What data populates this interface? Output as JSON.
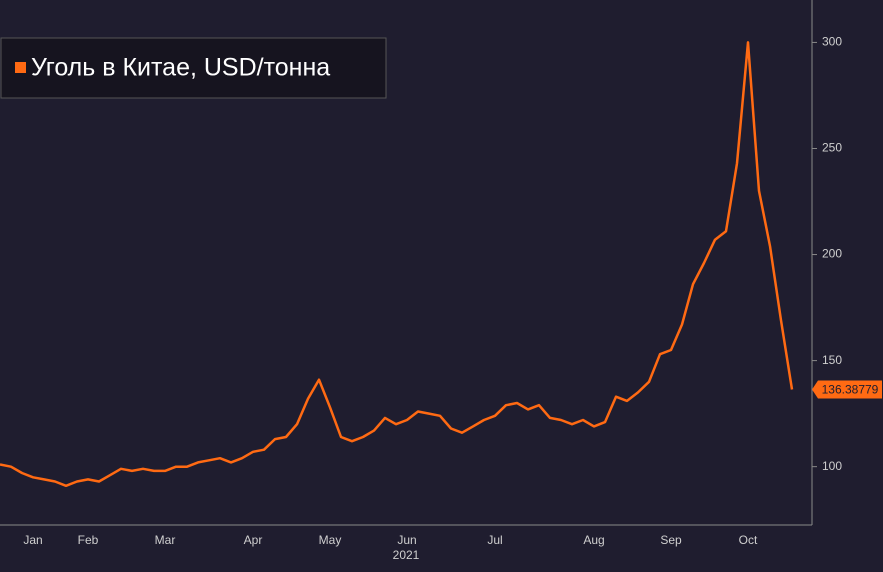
{
  "chart_data": {
    "type": "line",
    "legend_title": null,
    "xlabel": "2021",
    "categories": [
      null,
      null,
      null,
      "Jan",
      null,
      null,
      null,
      null,
      "Feb",
      null,
      null,
      null,
      null,
      null,
      null,
      "Mar",
      null,
      null,
      null,
      null,
      null,
      null,
      null,
      "Apr",
      null,
      null,
      null,
      null,
      null,
      null,
      "May",
      null,
      null,
      null,
      null,
      null,
      null,
      "Jun",
      null,
      null,
      null,
      null,
      null,
      null,
      null,
      "Jul",
      null,
      null,
      null,
      null,
      null,
      null,
      null,
      null,
      "Aug",
      null,
      null,
      null,
      null,
      null,
      null,
      "Sep",
      null,
      null,
      null,
      null,
      null,
      null,
      "Oct",
      null,
      null,
      null,
      null
    ],
    "series": [
      {
        "name": "Уголь в Китае, USD/тонна",
        "color": "#ff6a13",
        "values": [
          101,
          100,
          97,
          95,
          94,
          93,
          91,
          93,
          94,
          93,
          96,
          99,
          98,
          99,
          98,
          98,
          100,
          100,
          102,
          103,
          104,
          102,
          104,
          107,
          108,
          113,
          114,
          120,
          132,
          141,
          128,
          114,
          112,
          114,
          117,
          123,
          120,
          122,
          126,
          125,
          124,
          118,
          116,
          119,
          122,
          124,
          129,
          130,
          127,
          129,
          123,
          122,
          120,
          122,
          119,
          121,
          133,
          131,
          135,
          140,
          153,
          155,
          167,
          186,
          196,
          207,
          211,
          243,
          300,
          230,
          204,
          169,
          136.38779
        ]
      }
    ],
    "ylim": [
      72.5,
      320
    ],
    "yticks": [
      100,
      150,
      200,
      250,
      300
    ],
    "grid": false
  }
}
